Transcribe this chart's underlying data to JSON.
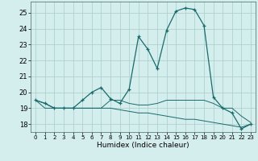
{
  "xlabel": "Humidex (Indice chaleur)",
  "x": [
    0,
    1,
    2,
    3,
    4,
    5,
    6,
    7,
    8,
    9,
    10,
    11,
    12,
    13,
    14,
    15,
    16,
    17,
    18,
    19,
    20,
    21,
    22,
    23
  ],
  "line1": [
    19.5,
    19.3,
    19.0,
    19.0,
    19.0,
    19.5,
    20.0,
    20.3,
    19.6,
    19.3,
    20.2,
    23.5,
    22.7,
    21.5,
    23.9,
    25.1,
    25.3,
    25.2,
    24.2,
    19.7,
    19.0,
    18.7,
    17.7,
    18.0
  ],
  "line2": [
    19.5,
    19.3,
    19.0,
    19.0,
    19.0,
    19.0,
    19.0,
    19.0,
    19.5,
    19.5,
    19.3,
    19.2,
    19.2,
    19.3,
    19.5,
    19.5,
    19.5,
    19.5,
    19.5,
    19.3,
    19.0,
    19.0,
    18.5,
    18.1
  ],
  "line3": [
    19.5,
    19.0,
    19.0,
    19.0,
    19.0,
    19.0,
    19.0,
    19.0,
    19.0,
    18.9,
    18.8,
    18.7,
    18.7,
    18.6,
    18.5,
    18.4,
    18.3,
    18.3,
    18.2,
    18.1,
    18.0,
    17.9,
    17.8,
    18.0
  ],
  "line_color": "#1a6b6b",
  "bg_color": "#d4eded",
  "grid_color": "#aacccc",
  "ylim": [
    17.5,
    25.7
  ],
  "yticks": [
    18,
    19,
    20,
    21,
    22,
    23,
    24,
    25
  ],
  "xticks": [
    0,
    1,
    2,
    3,
    4,
    5,
    6,
    7,
    8,
    9,
    10,
    11,
    12,
    13,
    14,
    15,
    16,
    17,
    18,
    19,
    20,
    21,
    22,
    23
  ]
}
